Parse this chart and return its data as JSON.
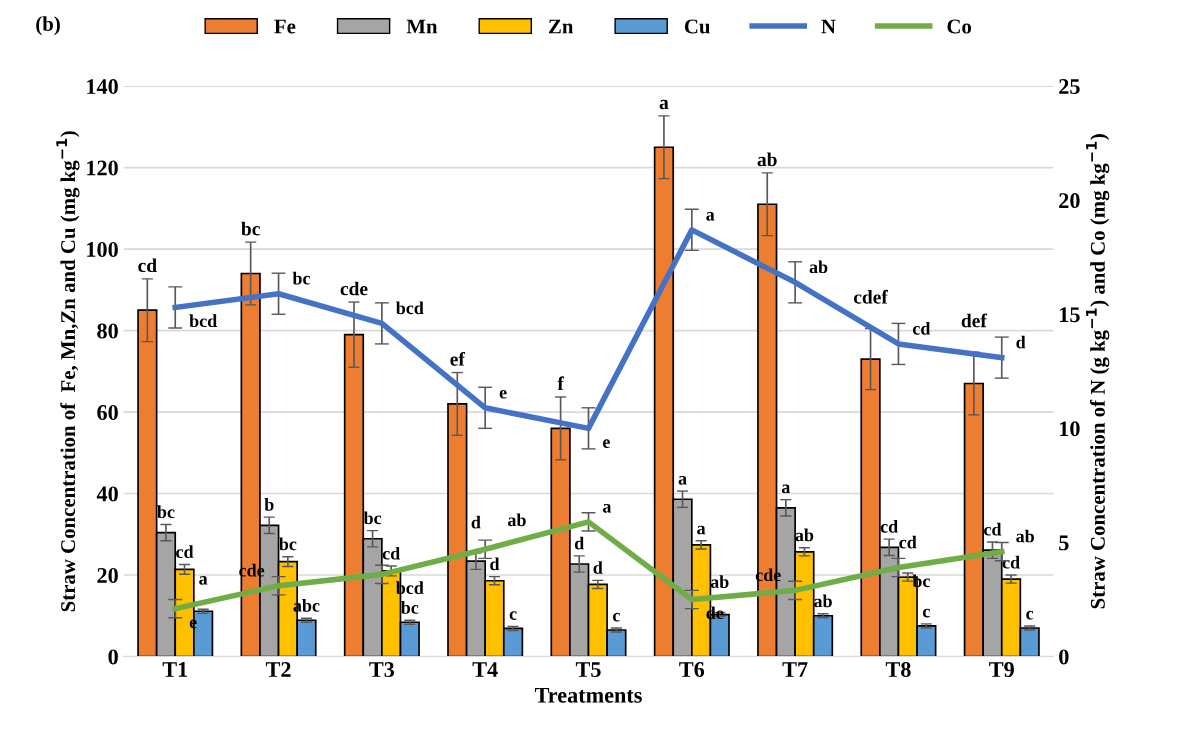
{
  "chart_data": {
    "type": "bar",
    "title": "(b)",
    "xlabel": "Treatments",
    "ylabel": "Straw Concentration of  Fe, Mn,Zn and Cu (mg kg$^{−1}$)",
    "y2label": "Straw Concentration of N (g kg$^{−1}$) and Co (mg kg$^{−1}$)",
    "categories": [
      "T1",
      "T2",
      "T3",
      "T4",
      "T5",
      "T6",
      "T7",
      "T8",
      "T9"
    ],
    "series": [
      {
        "name": "Fe",
        "color": "#ed7d31",
        "values": [
          85,
          94,
          79,
          62,
          56,
          125,
          111,
          73,
          67
        ],
        "errors": [
          7.7,
          7.7,
          8,
          7.7,
          7.7,
          7.7,
          7.7,
          7.5,
          7.7
        ],
        "value_labels": [
          "cd",
          "bc",
          "cde",
          "ef",
          "f",
          "a",
          "ab",
          "cdef",
          "def"
        ]
      },
      {
        "name": "Mn",
        "color": "#a5a5a5",
        "values": [
          30.4,
          32.2,
          28.9,
          23.4,
          22.7,
          38.6,
          36.5,
          26.8,
          26.1
        ],
        "errors": [
          2,
          2,
          2,
          2,
          2,
          2,
          2,
          2,
          2
        ],
        "value_labels": [
          "bc",
          "b",
          "bc",
          "d",
          "d",
          "a",
          "a",
          "cd",
          "cd"
        ]
      },
      {
        "name": "Zn",
        "color": "#ffc000",
        "values": [
          21.4,
          23.3,
          21,
          18.6,
          17.7,
          27.4,
          25.7,
          19.5,
          19
        ],
        "errors": [
          1.2,
          1.2,
          1.2,
          1,
          1,
          1,
          1,
          1,
          1
        ],
        "value_labels": [
          "cd",
          "bc",
          "cd",
          "d",
          "d",
          "a",
          "ab",
          "cd",
          "cd"
        ]
      },
      {
        "name": "Cu",
        "color": "#5b9bd5",
        "values": [
          11.1,
          8.9,
          8.4,
          6.9,
          6.5,
          10.3,
          10,
          7.5,
          7
        ],
        "errors": [
          0.5,
          0.5,
          0.5,
          0.5,
          0.5,
          0.5,
          0.5,
          0.5,
          0.5
        ],
        "value_labels": [
          "a",
          "abc",
          "bc",
          "c",
          "c",
          "ab",
          "ab",
          "c",
          "c"
        ]
      },
      {
        "name": "N",
        "type": "line",
        "axis": "y2",
        "color": "#4472c4",
        "values": [
          15.3,
          15.9,
          14.6,
          10.9,
          10,
          18.7,
          16.4,
          13.7,
          13.1
        ],
        "errors": [
          0.9,
          0.9,
          0.9,
          0.9,
          0.9,
          0.9,
          0.9,
          0.9,
          0.9
        ],
        "value_labels": [
          "bcd",
          "bc",
          "bcd",
          "e",
          "e",
          "a",
          "ab",
          "cd",
          "d"
        ]
      },
      {
        "name": "Co",
        "type": "line",
        "axis": "y2",
        "color": "#70ad47",
        "values": [
          2.1,
          3.1,
          3.6,
          4.7,
          5.9,
          2.5,
          2.9,
          3.9,
          4.6
        ],
        "errors": [
          0.4,
          0.4,
          0.4,
          0.4,
          0.4,
          0.4,
          0.4,
          0.4,
          0.4
        ],
        "value_labels": [
          "e",
          "cde",
          "bcd",
          "ab",
          "a",
          "de",
          "cde",
          "bc",
          "ab"
        ]
      }
    ],
    "ylim": [
      0,
      140
    ],
    "yticks": [
      0,
      20,
      40,
      60,
      80,
      100,
      120,
      140
    ],
    "y2lim": [
      0,
      25
    ],
    "y2ticks": [
      0,
      5,
      10,
      15,
      20,
      25
    ],
    "grid": "y",
    "legend": "top",
    "marker": "none",
    "line_style": "solid"
  }
}
